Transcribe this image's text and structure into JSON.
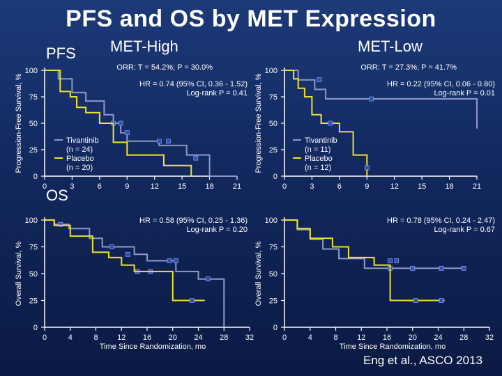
{
  "title": "PFS and OS by MET Expression",
  "headers": {
    "met_high": "MET-High",
    "met_low": "MET-Low"
  },
  "section_labels": {
    "pfs": "PFS",
    "os": "OS"
  },
  "citation": "Eng et al., ASCO 2013",
  "colors": {
    "tivantinib": "#8f99c8",
    "placebo": "#f2e22a",
    "marker": "#2d4fb5",
    "axis": "#ffffff"
  },
  "chart_data": [
    {
      "id": "pfs-high",
      "type": "line",
      "ylabel": "Progression-Free Survival, %",
      "xlabel": "",
      "xlim": [
        0,
        21
      ],
      "ylim": [
        0,
        100
      ],
      "xticks": [
        0,
        3,
        6,
        9,
        12,
        15,
        18,
        21
      ],
      "yticks": [
        0,
        25,
        50,
        75,
        100
      ],
      "show_yticks": true,
      "annotations": [
        "ORR: T = 54.2%; P = 30.0%",
        "HR = 0.74 (95% CI, 0.36 - 1.52)",
        "Log-rank P = 0.41"
      ],
      "legend": [
        "Tivantinib",
        "(n = 24)",
        "Placebo",
        "(n = 20)"
      ],
      "series": [
        {
          "name": "Tivantinib",
          "x": [
            0,
            1.5,
            1.5,
            3.0,
            3.0,
            4.5,
            4.5,
            6.5,
            6.5,
            7.5,
            7.5,
            8.3,
            8.3,
            9.0,
            9.0,
            12.5,
            12.5,
            15.5,
            15.5,
            18.0,
            18.0,
            21.0
          ],
          "y": [
            100,
            100,
            92,
            92,
            79,
            79,
            71,
            71,
            58,
            58,
            50,
            50,
            41,
            41,
            33,
            33,
            29,
            29,
            20,
            20,
            0,
            0
          ],
          "censor_x": [
            7.5,
            8.3,
            9.0,
            12.5,
            13.5
          ],
          "censor_y": [
            50,
            50,
            41,
            33,
            33
          ]
        },
        {
          "name": "Placebo",
          "x": [
            0,
            1.7,
            1.7,
            2.8,
            2.8,
            3.5,
            3.5,
            4.5,
            4.5,
            6.0,
            6.0,
            7.5,
            7.5,
            9.0,
            9.0,
            13.0,
            13.0,
            16.0,
            16.0
          ],
          "y": [
            100,
            100,
            80,
            80,
            75,
            75,
            65,
            65,
            60,
            60,
            50,
            50,
            32,
            32,
            20,
            20,
            10,
            10,
            0
          ],
          "censor_x": [
            16.5
          ],
          "censor_y": [
            17
          ]
        }
      ]
    },
    {
      "id": "pfs-low",
      "type": "line",
      "ylabel": "Progression-Free Survival, %",
      "xlabel": "",
      "xlim": [
        0,
        21
      ],
      "ylim": [
        0,
        100
      ],
      "xticks": [
        0,
        3,
        6,
        9,
        12,
        15,
        18,
        21
      ],
      "yticks": [
        0,
        25,
        50,
        75,
        100
      ],
      "show_yticks": true,
      "annotations": [
        "ORR: T = 27.3%; P = 41.7%",
        "HR = 0.22 (95% CI, 0.06 - 0.80)",
        "Log-rank P = 0.01"
      ],
      "legend": [
        "Tivantinib",
        "(n = 11)",
        "Placebo",
        "(n = 12)"
      ],
      "series": [
        {
          "name": "Tivantinib",
          "x": [
            0,
            1.5,
            1.5,
            3.3,
            3.3,
            4.5,
            4.5,
            6.5,
            6.5,
            21.0,
            21.0
          ],
          "y": [
            100,
            100,
            91,
            91,
            82,
            82,
            73,
            73,
            73,
            73,
            45
          ],
          "censor_x": [
            3.8,
            9.5
          ],
          "censor_y": [
            91,
            73
          ]
        },
        {
          "name": "Placebo",
          "x": [
            0,
            1.0,
            1.0,
            1.5,
            1.5,
            2.2,
            2.2,
            3.0,
            3.0,
            4.0,
            4.0,
            6.0,
            6.0,
            7.5,
            7.5,
            9.0,
            9.0
          ],
          "y": [
            100,
            100,
            92,
            92,
            83,
            83,
            75,
            75,
            58,
            58,
            50,
            50,
            42,
            42,
            20,
            20,
            0
          ],
          "censor_x": [
            5.0,
            9.0
          ],
          "censor_y": [
            50,
            8
          ]
        }
      ]
    },
    {
      "id": "os-high",
      "type": "line",
      "ylabel": "Overall Survival, %",
      "xlabel": "Time Since Randomization, mo",
      "xlim": [
        0,
        32
      ],
      "ylim": [
        0,
        100
      ],
      "xticks": [
        0,
        4,
        8,
        12,
        16,
        20,
        24,
        28,
        32
      ],
      "yticks": [
        0,
        25,
        50,
        75,
        100
      ],
      "show_yticks": true,
      "annotations": [
        "HR = 0.58 (95% CI, 0.25 - 1.36)",
        "Log-rank P = 0.20"
      ],
      "legend": [],
      "series": [
        {
          "name": "Tivantinib",
          "x": [
            0,
            1.5,
            1.5,
            3.8,
            3.8,
            7.0,
            7.0,
            9.0,
            9.0,
            14.0,
            14.0,
            16.0,
            16.0,
            20.5,
            20.5,
            24.0,
            24.0,
            28.0,
            28.0
          ],
          "y": [
            100,
            100,
            96,
            96,
            92,
            92,
            83,
            83,
            75,
            75,
            68,
            68,
            62,
            62,
            52,
            52,
            45,
            45,
            0
          ],
          "censor_x": [
            2.5,
            10.5,
            13.0,
            14.5,
            16.5,
            19.5,
            20.5,
            25.5
          ],
          "censor_y": [
            96,
            75,
            68,
            52,
            52,
            62,
            62,
            45
          ]
        },
        {
          "name": "Placebo",
          "x": [
            0,
            1.5,
            1.5,
            4.0,
            4.0,
            7.5,
            7.5,
            10.0,
            10.0,
            12.0,
            12.0,
            14.0,
            14.0,
            20.0,
            20.0,
            25.0
          ],
          "y": [
            100,
            100,
            95,
            95,
            85,
            85,
            70,
            70,
            65,
            65,
            58,
            58,
            52,
            52,
            25,
            25
          ],
          "censor_x": [
            23.0
          ],
          "censor_y": [
            25
          ]
        }
      ]
    },
    {
      "id": "os-low",
      "type": "line",
      "ylabel": "Overall Survival, %",
      "xlabel": "Time Since Randomization, mo",
      "xlim": [
        0,
        32
      ],
      "ylim": [
        0,
        100
      ],
      "xticks": [
        0,
        4,
        8,
        12,
        16,
        20,
        24,
        28,
        32
      ],
      "yticks": [
        0,
        25,
        50,
        75,
        100
      ],
      "show_yticks": true,
      "annotations": [
        "HR = 0.78 (95% CI, 0.24 - 2.47)",
        "Log-rank P = 0.67"
      ],
      "legend": [],
      "series": [
        {
          "name": "Tivantinib",
          "x": [
            0,
            2.0,
            2.0,
            4.0,
            4.0,
            6.0,
            6.0,
            8.5,
            8.5,
            12.5,
            12.5,
            15.0,
            15.0,
            28.0
          ],
          "y": [
            100,
            100,
            91,
            91,
            82,
            82,
            73,
            73,
            64,
            64,
            55,
            55,
            55,
            55
          ],
          "censor_x": [
            16.5,
            20.0,
            24.5,
            28.0
          ],
          "censor_y": [
            55,
            55,
            55,
            55
          ]
        },
        {
          "name": "Placebo",
          "x": [
            0,
            2.0,
            2.0,
            4.0,
            4.0,
            7.5,
            7.5,
            10.0,
            10.0,
            14.0,
            14.0,
            16.5,
            16.5,
            25.0
          ],
          "y": [
            100,
            100,
            92,
            92,
            83,
            83,
            75,
            75,
            65,
            65,
            58,
            58,
            25,
            25
          ],
          "censor_x": [
            16.5,
            17.5,
            20.5,
            24.5
          ],
          "censor_y": [
            62,
            62,
            25,
            25
          ]
        }
      ]
    }
  ]
}
